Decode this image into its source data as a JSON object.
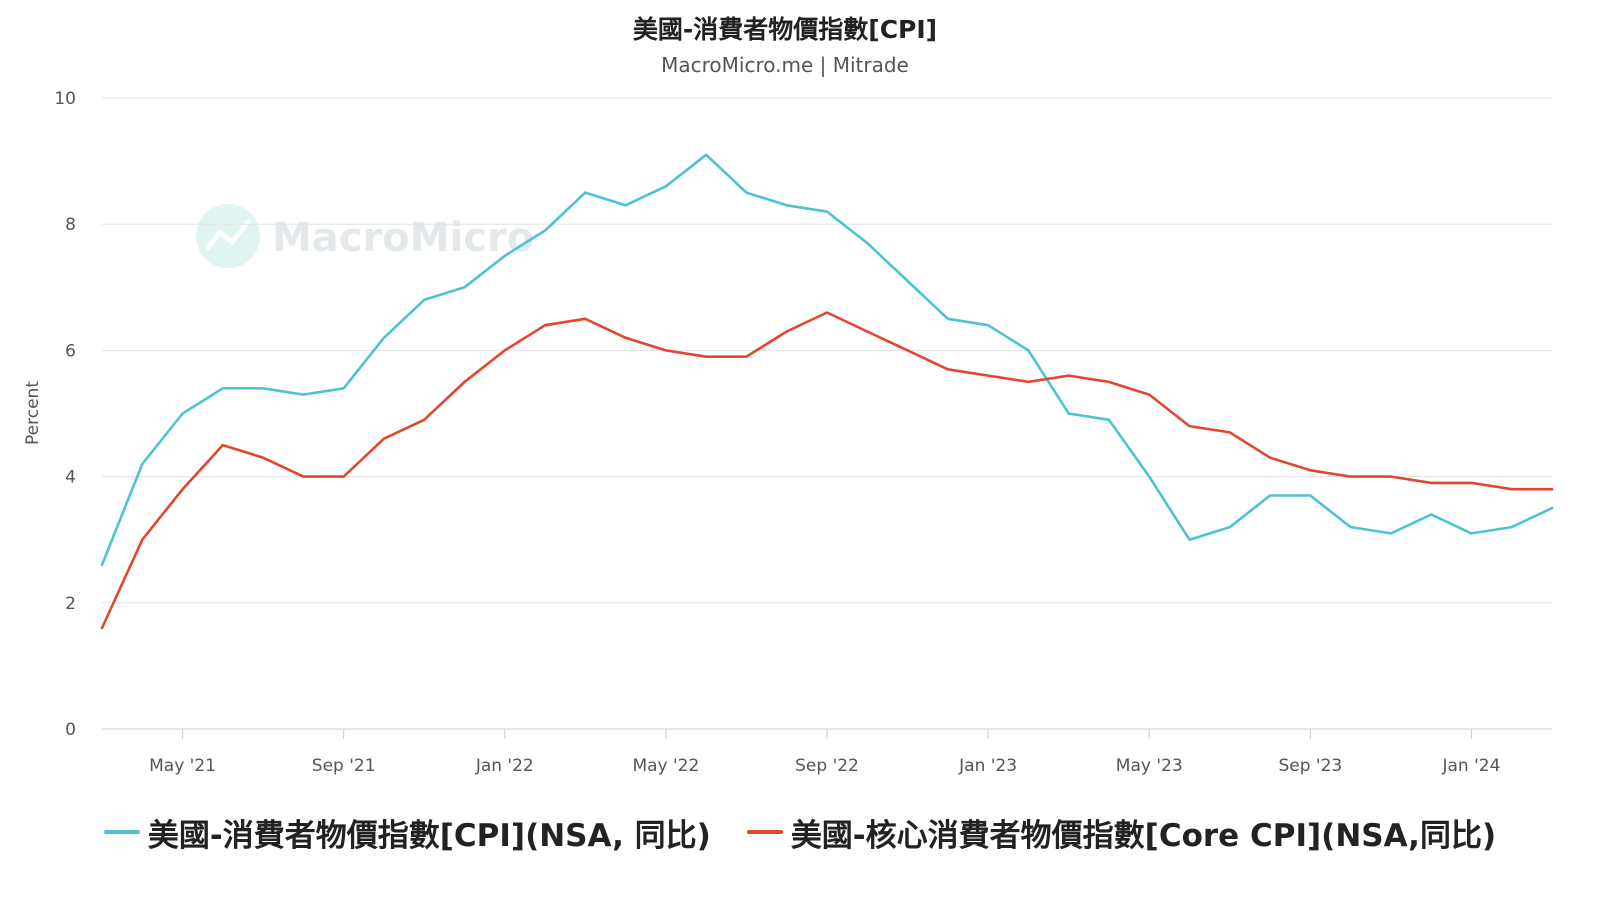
{
  "title": "美國-消費者物價指數[CPI]",
  "subtitle": "MacroMicro.me | Mitrade",
  "watermark": "MacroMicro",
  "colors": {
    "cpi": "#4dc3cf",
    "core": "#e2472d",
    "grid": "#e3e3e3",
    "axis": "#cccccc"
  },
  "chart_data": {
    "type": "line",
    "title": "美國-消費者物價指數[CPI]",
    "subtitle": "MacroMicro.me | Mitrade",
    "ylabel": "Percent",
    "xlabel": "",
    "ylim": [
      0,
      10
    ],
    "yticks": [
      0,
      2,
      4,
      6,
      8,
      10
    ],
    "x": [
      "2021-03",
      "2021-04",
      "2021-05",
      "2021-06",
      "2021-07",
      "2021-08",
      "2021-09",
      "2021-10",
      "2021-11",
      "2021-12",
      "2022-01",
      "2022-02",
      "2022-03",
      "2022-04",
      "2022-05",
      "2022-06",
      "2022-07",
      "2022-08",
      "2022-09",
      "2022-10",
      "2022-11",
      "2022-12",
      "2023-01",
      "2023-02",
      "2023-03",
      "2023-04",
      "2023-05",
      "2023-06",
      "2023-07",
      "2023-08",
      "2023-09",
      "2023-10",
      "2023-11",
      "2023-12",
      "2024-01",
      "2024-02",
      "2024-03"
    ],
    "xticks": [
      {
        "label": "May '21",
        "x": "2021-05"
      },
      {
        "label": "Sep '21",
        "x": "2021-09"
      },
      {
        "label": "Jan '22",
        "x": "2022-01"
      },
      {
        "label": "May '22",
        "x": "2022-05"
      },
      {
        "label": "Sep '22",
        "x": "2022-09"
      },
      {
        "label": "Jan '23",
        "x": "2023-01"
      },
      {
        "label": "May '23",
        "x": "2023-05"
      },
      {
        "label": "Sep '23",
        "x": "2023-09"
      },
      {
        "label": "Jan '24",
        "x": "2024-01"
      }
    ],
    "grid": true,
    "legend": "bottom",
    "series": [
      {
        "name": "美國-消費者物價指數[CPI](NSA, 同比)",
        "key": "cpi",
        "values": [
          2.6,
          4.2,
          5.0,
          5.4,
          5.4,
          5.3,
          5.4,
          6.2,
          6.8,
          7.0,
          7.5,
          7.9,
          8.5,
          8.3,
          8.6,
          9.1,
          8.5,
          8.3,
          8.2,
          7.7,
          7.1,
          6.5,
          6.4,
          6.0,
          5.0,
          4.9,
          4.0,
          3.0,
          3.2,
          3.7,
          3.7,
          3.2,
          3.1,
          3.4,
          3.1,
          3.2,
          3.5
        ]
      },
      {
        "name": "美國-核心消費者物價指數[Core CPI](NSA,同比)",
        "key": "core",
        "values": [
          1.6,
          3.0,
          3.8,
          4.5,
          4.3,
          4.0,
          4.0,
          4.6,
          4.9,
          5.5,
          6.0,
          6.4,
          6.5,
          6.2,
          6.0,
          5.9,
          5.9,
          6.3,
          6.6,
          6.3,
          6.0,
          5.7,
          5.6,
          5.5,
          5.6,
          5.5,
          5.3,
          4.8,
          4.7,
          4.3,
          4.1,
          4.0,
          4.0,
          3.9,
          3.9,
          3.8,
          3.8
        ]
      }
    ]
  }
}
